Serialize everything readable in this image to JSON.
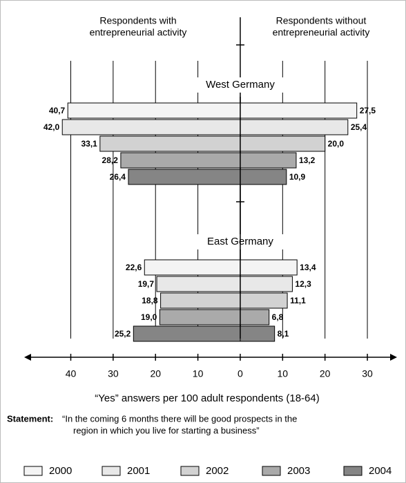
{
  "chart_data": {
    "type": "butterfly-bar",
    "left_header": [
      "Respondents with",
      "entrepreneurial activity"
    ],
    "right_header": [
      "Respondents without",
      "entrepreneurial activity"
    ],
    "groups": [
      {
        "name": "West Germany",
        "left": [
          40.7,
          42.0,
          33.1,
          28.2,
          26.4
        ],
        "left_labels": [
          "40,7",
          "42,0",
          "33,1",
          "28,2",
          "26,4"
        ],
        "right": [
          27.5,
          25.4,
          20.0,
          13.2,
          10.9
        ],
        "right_labels": [
          "27,5",
          "25,4",
          "20,0",
          "13,2",
          "10,9"
        ]
      },
      {
        "name": "East Germany",
        "left": [
          22.6,
          19.7,
          18.8,
          19.0,
          25.2
        ],
        "left_labels": [
          "22,6",
          "19,7",
          "18,8",
          "19,0",
          "25,2"
        ],
        "right": [
          13.4,
          12.3,
          11.1,
          6.8,
          8.1
        ],
        "right_labels": [
          "13,4",
          "12,3",
          "11,1",
          "6,8",
          "8,1"
        ]
      }
    ],
    "series": [
      {
        "name": "2000",
        "color": "#f4f4f4"
      },
      {
        "name": "2001",
        "color": "#e8e8e8"
      },
      {
        "name": "2002",
        "color": "#d2d2d2"
      },
      {
        "name": "2003",
        "color": "#aaaaaa"
      },
      {
        "name": "2004",
        "color": "#858585"
      }
    ],
    "xlim": [
      -51,
      37
    ],
    "xticks": [
      {
        "value": -40,
        "label": "40"
      },
      {
        "value": -30,
        "label": "30"
      },
      {
        "value": -20,
        "label": "20"
      },
      {
        "value": -10,
        "label": "10"
      },
      0,
      10,
      20,
      30
    ],
    "xlabel": "“Yes” answers per 100 adult respondents (18-64)",
    "statement_label": "Statement:",
    "statement": [
      "“In the coming 6 months there will be good prospects in the",
      "region in which you live for starting a business”"
    ],
    "grid": true
  }
}
